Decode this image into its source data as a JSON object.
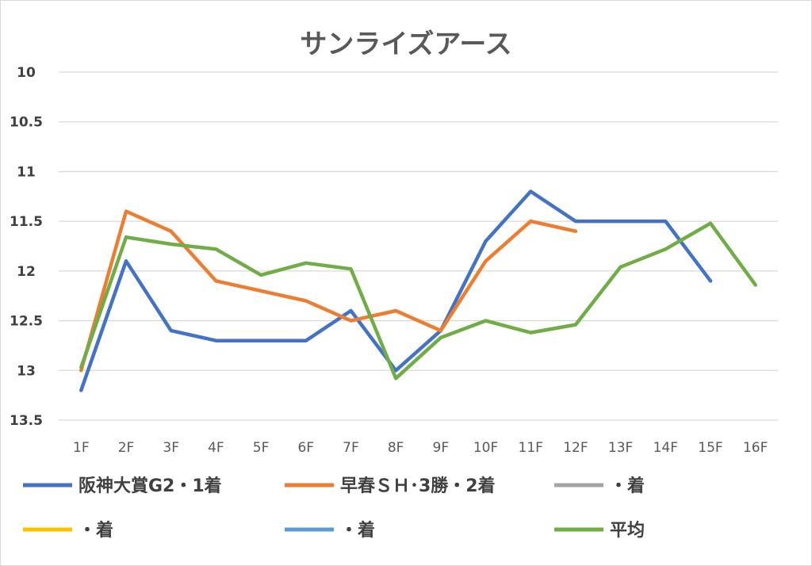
{
  "chart_data": {
    "type": "line",
    "title": "サンライズアース",
    "xlabel": "",
    "ylabel": "",
    "categories": [
      "1F",
      "2F",
      "3F",
      "4F",
      "5F",
      "6F",
      "7F",
      "8F",
      "9F",
      "10F",
      "11F",
      "12F",
      "13F",
      "14F",
      "15F",
      "16F"
    ],
    "y_ticks": [
      "10",
      "10.5",
      "11",
      "11.5",
      "12",
      "12.5",
      "13",
      "13.5"
    ],
    "ylim": [
      10,
      13.5
    ],
    "y_reversed": true,
    "grid": true,
    "legend_position": "bottom",
    "series": [
      {
        "name": "阪神大賞G2・1着",
        "color": "#4472c4",
        "values": [
          13.2,
          11.9,
          12.6,
          12.7,
          12.7,
          12.7,
          12.4,
          13.0,
          12.6,
          11.7,
          11.2,
          11.5,
          11.5,
          11.5,
          12.1,
          null
        ]
      },
      {
        "name": "早春ＳＨ･3勝・2着",
        "color": "#ed7d31",
        "values": [
          13.0,
          11.4,
          11.6,
          12.1,
          12.2,
          12.3,
          12.5,
          12.4,
          12.6,
          11.9,
          11.5,
          11.6,
          null,
          null,
          null,
          null
        ]
      },
      {
        "name": "・着",
        "color": "#a5a5a5",
        "values": [
          null,
          null,
          null,
          null,
          null,
          null,
          null,
          null,
          null,
          null,
          null,
          null,
          null,
          null,
          null,
          null
        ]
      },
      {
        "name": "・着",
        "color": "#ffc000",
        "values": [
          null,
          null,
          null,
          null,
          null,
          null,
          null,
          null,
          null,
          null,
          null,
          null,
          null,
          null,
          null,
          null
        ]
      },
      {
        "name": "・着",
        "color": "#5b9bd5",
        "values": [
          null,
          null,
          null,
          null,
          null,
          null,
          null,
          null,
          null,
          null,
          null,
          null,
          null,
          null,
          null,
          null
        ]
      },
      {
        "name": "平均",
        "color": "#70ad47",
        "values": [
          12.97,
          11.66,
          11.73,
          11.78,
          12.04,
          11.92,
          11.98,
          13.08,
          12.67,
          12.5,
          12.62,
          12.54,
          11.96,
          11.78,
          11.52,
          12.14
        ]
      }
    ]
  }
}
